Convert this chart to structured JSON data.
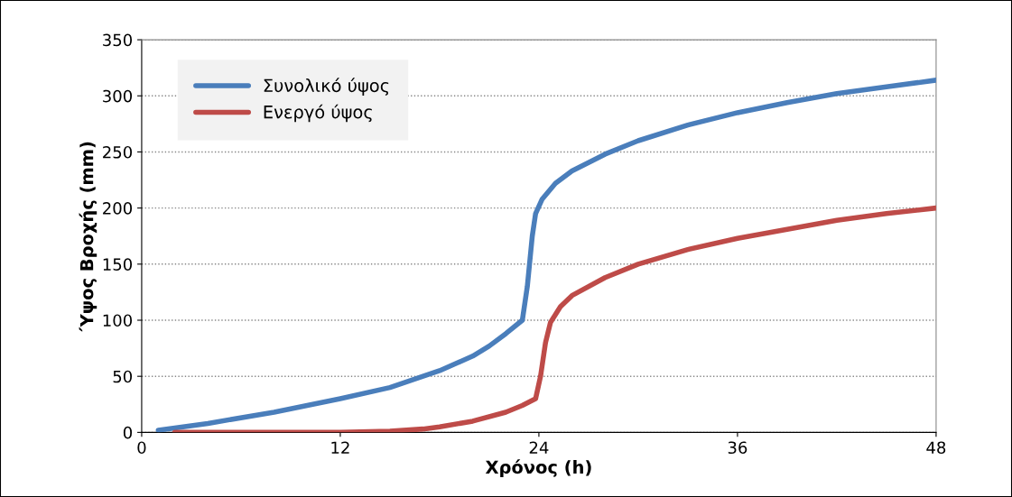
{
  "chart_data": {
    "type": "line",
    "xlabel": "Χρόνος (h)",
    "ylabel": "Ύψος Βροχής (mm)",
    "xlim": [
      0,
      48
    ],
    "xticks": [
      0,
      12,
      24,
      36,
      48
    ],
    "ylim": [
      0,
      350
    ],
    "yticks": [
      0,
      50,
      100,
      150,
      200,
      250,
      300,
      350
    ],
    "grid": "y",
    "legend": "top left",
    "marker": "none",
    "line_style": "solid",
    "series": [
      {
        "name": "Συνολικό ύψος",
        "color": "#4a7ebb",
        "x": [
          1,
          4,
          8,
          12,
          15,
          18,
          20,
          21,
          22,
          23,
          23.3,
          23.6,
          23.8,
          24.2,
          25,
          26,
          28,
          30,
          33,
          36,
          39,
          42,
          45,
          48
        ],
        "values": [
          2,
          8,
          18,
          30,
          40,
          55,
          68,
          77,
          88,
          100,
          130,
          175,
          195,
          208,
          222,
          233,
          248,
          260,
          274,
          285,
          294,
          302,
          308,
          314
        ]
      },
      {
        "name": "Ενεργό ύψος",
        "color": "#be4b48",
        "x": [
          2,
          8,
          12,
          15,
          17,
          18,
          20,
          22,
          23,
          23.8,
          24.1,
          24.4,
          24.7,
          25.3,
          26,
          28,
          30,
          33,
          36,
          39,
          42,
          45,
          48
        ],
        "values": [
          0,
          0,
          0,
          1,
          3,
          5,
          10,
          18,
          24,
          30,
          50,
          80,
          98,
          112,
          122,
          138,
          150,
          163,
          173,
          181,
          189,
          195,
          200
        ]
      }
    ]
  }
}
